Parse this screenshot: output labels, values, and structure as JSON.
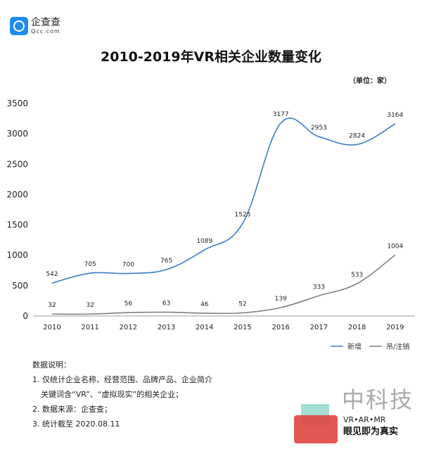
{
  "logo": {
    "cn": "企查查",
    "en": "Qcc.com"
  },
  "unit": "（单位：家）",
  "notes": {
    "heading": "数据说明：",
    "items": [
      "1. 仅统计企业名称、经营范围、品牌产品、企业简介",
      "关键词含“VR”、“虚拟现实”的相关企业；",
      "2. 数据来源：企查查；",
      "3. 统计截至 2020.08.11"
    ]
  },
  "watermark": {
    "name": "中科技",
    "sub": "VR•AR•MR",
    "slogan": "眼见即为真实"
  },
  "chart_data": {
    "type": "line",
    "title": "2010-2019年VR相关企业数量变化",
    "xlabel": "",
    "ylabel": "",
    "categories": [
      "2010",
      "2011",
      "2012",
      "2013",
      "2014",
      "2015",
      "2016",
      "2017",
      "2018",
      "2019"
    ],
    "yticks": [
      "0",
      "500",
      "1000",
      "1500",
      "2000",
      "2500",
      "3000",
      "3500"
    ],
    "ylim": [
      0,
      3500
    ],
    "grid": false,
    "legend": "bottom-right",
    "series": [
      {
        "name": "新增",
        "color": "#3b7dc6",
        "values": [
          542,
          705,
          700,
          765,
          1089,
          1525,
          3177,
          2953,
          2824,
          3164
        ]
      },
      {
        "name": "吊/注销",
        "color": "#808080",
        "values": [
          32,
          32,
          56,
          63,
          46,
          52,
          139,
          333,
          533,
          1004
        ]
      }
    ]
  }
}
